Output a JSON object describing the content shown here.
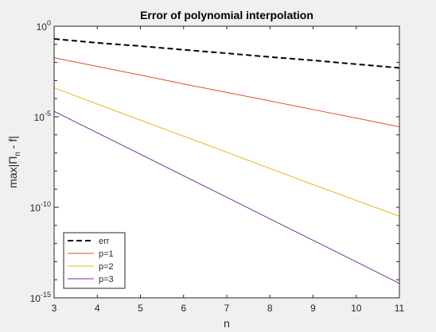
{
  "chart_data": {
    "type": "line",
    "title": "Error of polynomial interpolation",
    "xlabel": "n",
    "ylabel": "max|Π_n - f|",
    "ylabel_main": "max|Π",
    "ylabel_sub": "n",
    "ylabel_tail": " - f|",
    "x": [
      3,
      4,
      5,
      6,
      7,
      8,
      9,
      10,
      11
    ],
    "xlim": [
      3,
      11
    ],
    "ylim": [
      1e-15,
      1
    ],
    "yscale": "log",
    "xticks": [
      3,
      4,
      5,
      6,
      7,
      8,
      9,
      10,
      11
    ],
    "yticks": [
      {
        "value": 1,
        "base": "10",
        "exp": "0"
      },
      {
        "value": 1e-05,
        "base": "10",
        "exp": "-5"
      },
      {
        "value": 1e-10,
        "base": "10",
        "exp": "-10"
      },
      {
        "value": 1e-15,
        "base": "10",
        "exp": "-15"
      }
    ],
    "grid": false,
    "legend_position": "bottom-left",
    "series": [
      {
        "name": "err",
        "color": "#000000",
        "dash": "dashed",
        "values": [
          0.2,
          0.12,
          0.08,
          0.05,
          0.032,
          0.02,
          0.013,
          0.008,
          0.005
        ]
      },
      {
        "name": "p=1",
        "color": "#d95319",
        "dash": "solid",
        "values": [
          0.018,
          0.006,
          0.002,
          0.00065,
          0.00022,
          7.5e-05,
          2.5e-05,
          8.5e-06,
          2.8e-06
        ]
      },
      {
        "name": "p=2",
        "color": "#edb120",
        "dash": "solid",
        "values": [
          0.0004,
          5e-05,
          6.5e-06,
          8.5e-07,
          1.1e-07,
          1.4e-08,
          1.8e-09,
          2.4e-10,
          3.2e-11
        ]
      },
      {
        "name": "p=3",
        "color": "#7e2f8e",
        "dash": "solid",
        "values": [
          2e-05,
          1.3e-06,
          8.5e-08,
          5.5e-09,
          3.6e-10,
          2.3e-11,
          1.5e-12,
          9.8e-14,
          6.3e-15
        ]
      }
    ]
  }
}
